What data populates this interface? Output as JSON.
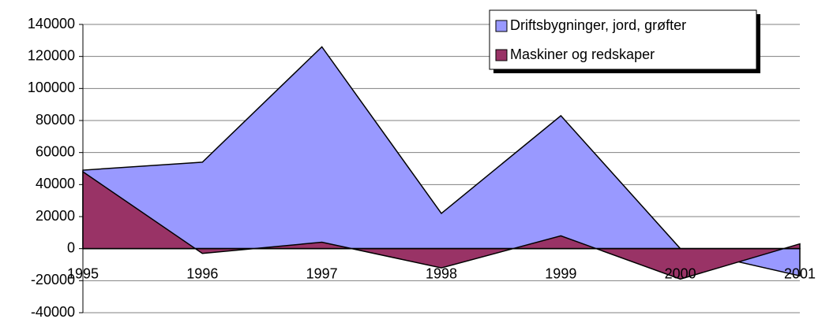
{
  "chart_data": {
    "type": "area",
    "categories": [
      "1995",
      "1996",
      "1997",
      "1998",
      "1999",
      "2000",
      "2001"
    ],
    "series": [
      {
        "name": "Driftsbygninger, jord, grøfter",
        "color": "#9999ff",
        "values": [
          49000,
          54000,
          126000,
          22000,
          83000,
          0,
          -17000
        ]
      },
      {
        "name": "Maskiner og redskaper",
        "color": "#993366",
        "values": [
          48000,
          -3000,
          4000,
          -12000,
          8000,
          -19000,
          3000
        ]
      }
    ],
    "ylim": [
      -40000,
      140000
    ],
    "yticks": [
      -40000,
      -20000,
      0,
      20000,
      40000,
      60000,
      80000,
      100000,
      120000,
      140000
    ],
    "grid": true,
    "legend": "upper right"
  }
}
